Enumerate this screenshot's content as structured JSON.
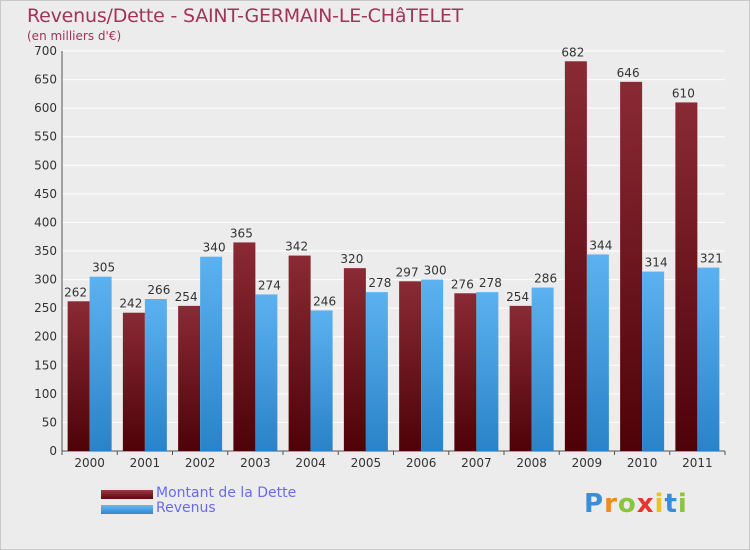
{
  "chart_data": {
    "type": "bar",
    "title": "Revenus/Dette - SAINT-GERMAIN-LE-CHâTELET",
    "subtitle": "(en milliers d'€)",
    "categories": [
      "2000",
      "2001",
      "2002",
      "2003",
      "2004",
      "2005",
      "2006",
      "2007",
      "2008",
      "2009",
      "2010",
      "2011"
    ],
    "series": [
      {
        "name": "Montant de la Dette",
        "color": "#7a1e28",
        "values": [
          262,
          242,
          254,
          365,
          342,
          320,
          297,
          276,
          254,
          682,
          646,
          610
        ]
      },
      {
        "name": "Revenus",
        "color": "#4aa3e6",
        "values": [
          305,
          266,
          340,
          274,
          246,
          278,
          300,
          278,
          286,
          344,
          314,
          321
        ]
      }
    ],
    "ylim": [
      0,
      700
    ],
    "yticks": [
      0,
      50,
      100,
      150,
      200,
      250,
      300,
      350,
      400,
      450,
      500,
      550,
      600,
      650,
      700
    ],
    "grid": true,
    "legend_position": "bottom-left"
  },
  "logo": {
    "text": "Proxiti",
    "letters": [
      "P",
      "r",
      "o",
      "x",
      "i",
      "t",
      "i"
    ],
    "colors": [
      "#3a8ed8",
      "#f08a1c",
      "#8cc43c",
      "#e8342c",
      "#f0c020",
      "#3a8ed8",
      "#8cc43c"
    ]
  }
}
